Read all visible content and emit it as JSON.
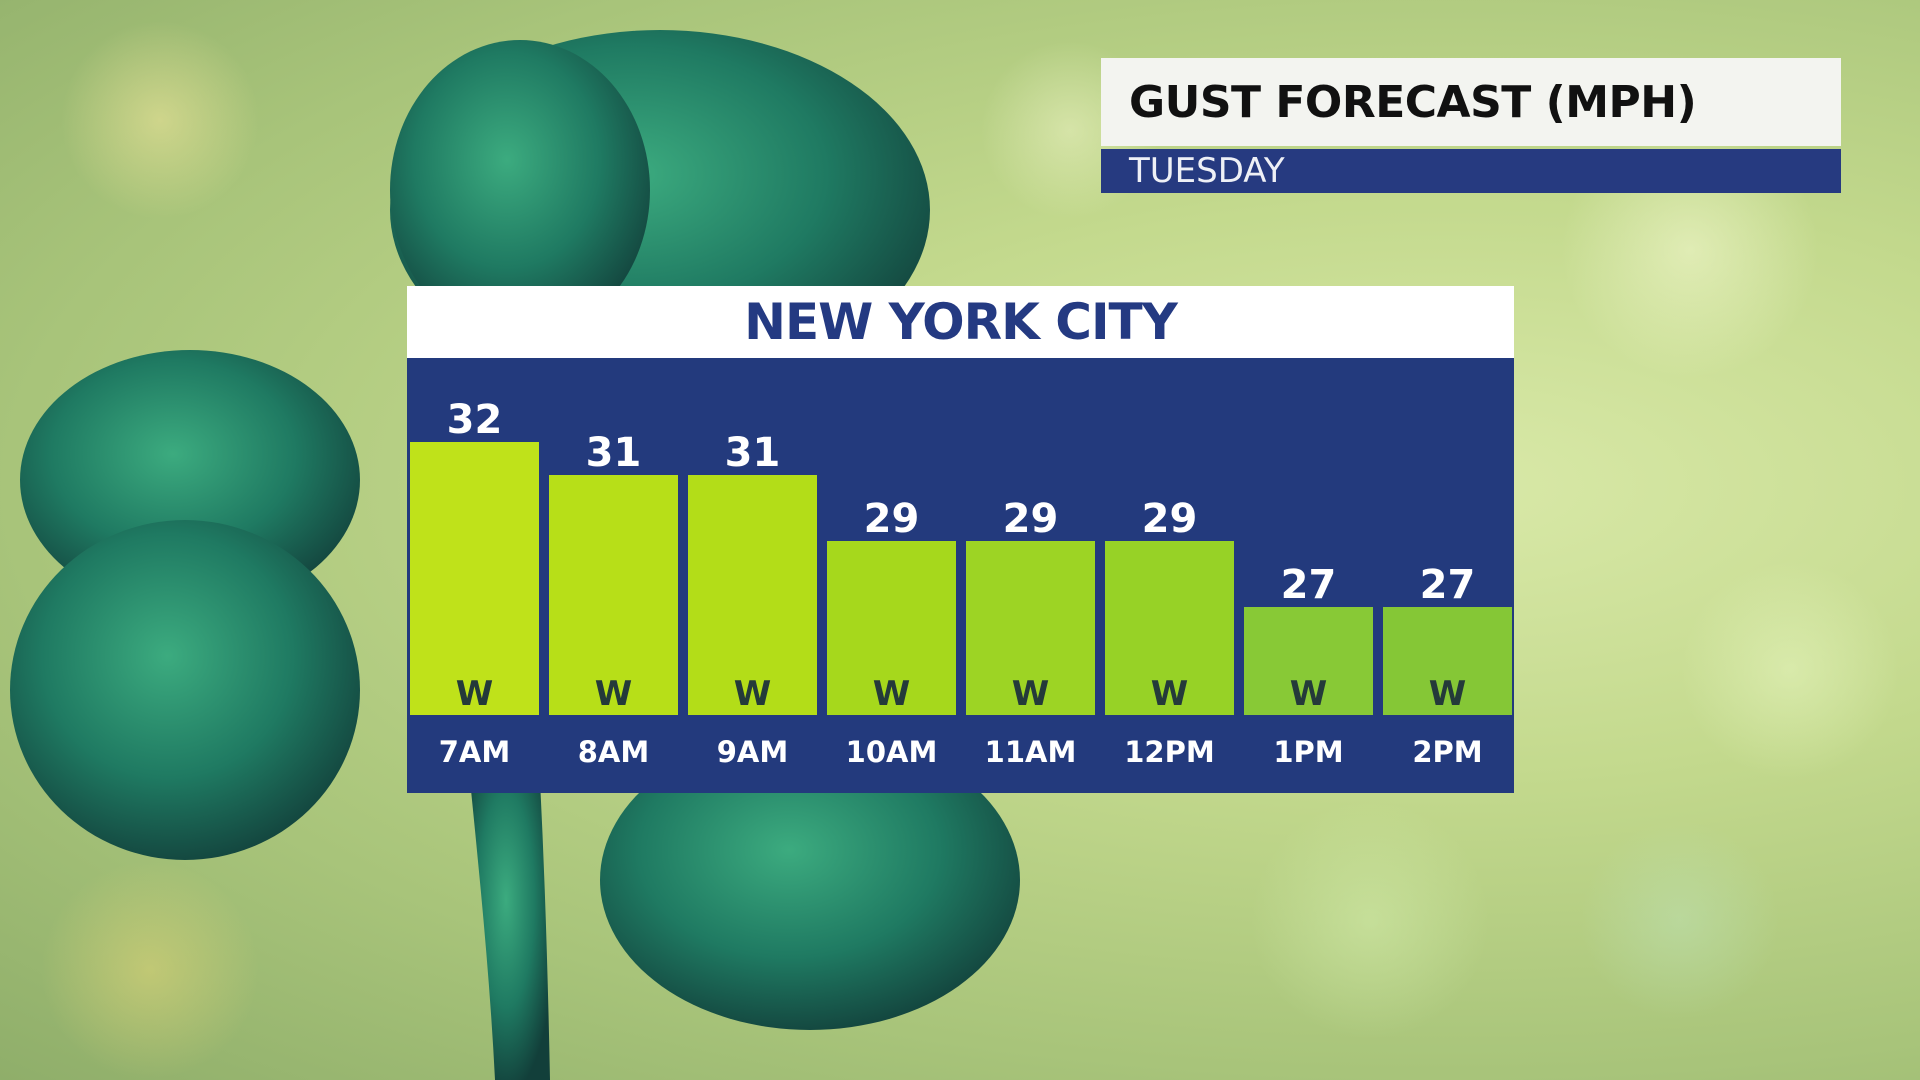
{
  "header": {
    "title": "GUST FORECAST (MPH)",
    "subtitle": "TUESDAY"
  },
  "panel": {
    "location": "NEW YORK CITY"
  },
  "colors": {
    "panel_bg": "#233a7d",
    "title_bg": "#f3f4f0",
    "subtitle_bg": "#263a80",
    "bar_colors": [
      "#bfe21a",
      "#b7df18",
      "#b3dd18",
      "#a6d81c",
      "#9dd424",
      "#97d226",
      "#88c936",
      "#85c736"
    ]
  },
  "chart_data": {
    "type": "bar",
    "categories": [
      "7AM",
      "8AM",
      "9AM",
      "10AM",
      "11AM",
      "12PM",
      "1PM",
      "2PM"
    ],
    "values": [
      32,
      31,
      31,
      29,
      29,
      29,
      27,
      27
    ],
    "directions": [
      "W",
      "W",
      "W",
      "W",
      "W",
      "W",
      "W",
      "W"
    ],
    "title": "GUST FORECAST (MPH)",
    "subtitle": "TUESDAY",
    "xlabel": "",
    "ylabel": "",
    "grid": false,
    "legend": "none"
  }
}
